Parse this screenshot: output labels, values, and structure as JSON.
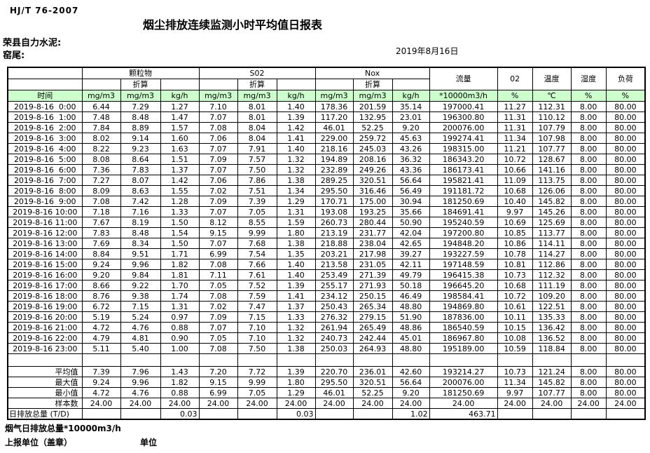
{
  "page": {
    "standard": "HJ/T  76-2007",
    "title": "烟尘排放连续监测小时平均值日报表",
    "company": "荣县自力水泥:",
    "site": "窑尾:",
    "date": "2019年8月16日"
  },
  "table": {
    "groups": {
      "pm": "颗粒物",
      "so2": "S02",
      "nox": "Nox",
      "flow": "流量",
      "o2": "02",
      "temp": "温度",
      "humidity": "湿度",
      "load": "负荷"
    },
    "zhesuan": "折算",
    "time_header": "时间",
    "units": {
      "mg": "mg/m3",
      "kgh": "kg/h",
      "flow": "*10000m3/h",
      "pct": "%",
      "temp": "℃"
    },
    "rows": [
      {
        "time": "2019-8-16  0:00",
        "values": [
          "6.44",
          "7.29",
          "1.27",
          "7.10",
          "8.01",
          "1.40",
          "178.36",
          "201.59",
          "35.14",
          "197000.41",
          "11.27",
          "112.31",
          "8.00",
          "80.00"
        ]
      },
      {
        "time": "2019-8-16  1:00",
        "values": [
          "7.48",
          "8.48",
          "1.47",
          "7.07",
          "8.01",
          "1.39",
          "117.20",
          "132.95",
          "23.01",
          "196300.80",
          "11.31",
          "110.12",
          "8.00",
          "80.00"
        ]
      },
      {
        "time": "2019-8-16  2:00",
        "values": [
          "7.84",
          "8.89",
          "1.57",
          "7.08",
          "8.04",
          "1.42",
          "46.01",
          "52.25",
          "9.20",
          "200076.00",
          "11.31",
          "107.79",
          "8.00",
          "80.00"
        ]
      },
      {
        "time": "2019-8-16  3:00",
        "values": [
          "8.02",
          "9.14",
          "1.60",
          "7.06",
          "8.04",
          "1.41",
          "229.00",
          "259.72",
          "45.63",
          "199274.41",
          "11.34",
          "107.98",
          "8.00",
          "80.00"
        ]
      },
      {
        "time": "2019-8-16  4:00",
        "values": [
          "8.22",
          "9.23",
          "1.63",
          "7.07",
          "7.91",
          "1.40",
          "218.16",
          "245.03",
          "43.26",
          "198315.00",
          "11.21",
          "107.77",
          "8.00",
          "80.00"
        ]
      },
      {
        "time": "2019-8-16  5:00",
        "values": [
          "8.08",
          "8.64",
          "1.51",
          "7.09",
          "7.57",
          "1.32",
          "194.89",
          "208.16",
          "36.32",
          "186343.20",
          "10.72",
          "128.67",
          "8.00",
          "80.00"
        ]
      },
      {
        "time": "2019-8-16  6:00",
        "values": [
          "7.36",
          "7.83",
          "1.37",
          "7.07",
          "7.50",
          "1.32",
          "232.89",
          "249.26",
          "43.36",
          "186173.41",
          "10.66",
          "141.16",
          "8.00",
          "80.00"
        ]
      },
      {
        "time": "2019-8-16  7:00",
        "values": [
          "7.27",
          "8.07",
          "1.42",
          "7.06",
          "7.86",
          "1.38",
          "289.25",
          "320.51",
          "56.64",
          "195821.41",
          "11.09",
          "113.75",
          "8.00",
          "80.00"
        ]
      },
      {
        "time": "2019-8-16  8:00",
        "values": [
          "8.09",
          "8.63",
          "1.55",
          "7.02",
          "7.51",
          "1.34",
          "295.50",
          "316.46",
          "56.49",
          "191181.72",
          "10.68",
          "126.06",
          "8.00",
          "80.00"
        ]
      },
      {
        "time": "2019-8-16  9:00",
        "values": [
          "7.08",
          "7.42",
          "1.28",
          "7.09",
          "7.39",
          "1.29",
          "170.71",
          "175.00",
          "30.94",
          "181250.69",
          "10.40",
          "145.82",
          "8.00",
          "80.00"
        ]
      },
      {
        "time": "2019-8-16 10:00",
        "values": [
          "7.18",
          "7.16",
          "1.33",
          "7.07",
          "7.05",
          "1.31",
          "193.08",
          "193.25",
          "35.66",
          "184691.41",
          "9.97",
          "145.26",
          "8.00",
          "80.00"
        ]
      },
      {
        "time": "2019-8-16 11:00",
        "values": [
          "7.67",
          "8.19",
          "1.50",
          "8.12",
          "8.55",
          "1.59",
          "260.73",
          "280.44",
          "50.90",
          "195240.59",
          "10.69",
          "125.69",
          "8.00",
          "80.00"
        ]
      },
      {
        "time": "2019-8-16 12:00",
        "values": [
          "7.83",
          "8.48",
          "1.54",
          "9.15",
          "9.99",
          "1.80",
          "213.19",
          "231.77",
          "42.04",
          "197200.80",
          "10.85",
          "113.77",
          "8.00",
          "80.00"
        ]
      },
      {
        "time": "2019-8-16 13:00",
        "values": [
          "7.69",
          "8.34",
          "1.50",
          "7.07",
          "7.68",
          "1.38",
          "218.88",
          "238.04",
          "42.65",
          "194848.20",
          "10.86",
          "114.11",
          "8.00",
          "80.00"
        ]
      },
      {
        "time": "2019-8-16 14:00",
        "values": [
          "8.84",
          "9.51",
          "1.71",
          "6.99",
          "7.54",
          "1.35",
          "203.21",
          "217.98",
          "39.27",
          "193227.59",
          "10.78",
          "114.27",
          "8.00",
          "80.00"
        ]
      },
      {
        "time": "2019-8-16 15:00",
        "values": [
          "9.24",
          "9.96",
          "1.82",
          "7.08",
          "7.66",
          "1.40",
          "213.58",
          "231.05",
          "42.11",
          "197148.59",
          "10.81",
          "112.86",
          "8.00",
          "80.00"
        ]
      },
      {
        "time": "2019-8-16 16:00",
        "values": [
          "9.20",
          "9.84",
          "1.81",
          "7.11",
          "7.61",
          "1.40",
          "253.49",
          "271.39",
          "49.79",
          "196415.38",
          "10.73",
          "112.32",
          "8.00",
          "80.00"
        ]
      },
      {
        "time": "2019-8-16 17:00",
        "values": [
          "8.66",
          "9.22",
          "1.70",
          "7.05",
          "7.52",
          "1.39",
          "255.17",
          "271.93",
          "50.18",
          "196645.20",
          "10.68",
          "111.19",
          "8.00",
          "80.00"
        ]
      },
      {
        "time": "2019-8-16 18:00",
        "values": [
          "8.76",
          "9.38",
          "1.74",
          "7.08",
          "7.59",
          "1.41",
          "234.12",
          "250.15",
          "46.49",
          "198584.41",
          "10.72",
          "109.20",
          "8.00",
          "80.00"
        ]
      },
      {
        "time": "2019-8-16 19:00",
        "values": [
          "6.72",
          "7.15",
          "1.31",
          "7.02",
          "7.47",
          "1.37",
          "250.43",
          "265.34",
          "48.80",
          "194869.80",
          "10.61",
          "122.51",
          "8.00",
          "80.00"
        ]
      },
      {
        "time": "2019-8-16 20:00",
        "values": [
          "5.19",
          "5.24",
          "0.97",
          "7.09",
          "7.15",
          "1.33",
          "276.32",
          "279.15",
          "51.90",
          "187836.00",
          "10.11",
          "135.33",
          "8.00",
          "80.00"
        ]
      },
      {
        "time": "2019-8-16 21:00",
        "values": [
          "4.72",
          "4.76",
          "0.88",
          "7.07",
          "7.10",
          "1.32",
          "261.94",
          "265.49",
          "48.86",
          "186540.59",
          "10.15",
          "136.42",
          "8.00",
          "80.00"
        ]
      },
      {
        "time": "2019-8-16 22:00",
        "values": [
          "4.79",
          "4.81",
          "0.90",
          "7.05",
          "7.10",
          "1.32",
          "240.73",
          "242.44",
          "45.01",
          "186967.80",
          "10.08",
          "136.52",
          "8.00",
          "80.00"
        ]
      },
      {
        "time": "2019-8-16 23:00",
        "values": [
          "5.11",
          "5.40",
          "1.00",
          "7.08",
          "7.50",
          "1.38",
          "250.03",
          "264.93",
          "48.80",
          "195189.00",
          "10.59",
          "118.84",
          "8.00",
          "80.00"
        ]
      }
    ],
    "summary": [
      {
        "label": "平均值",
        "values": [
          "7.39",
          "7.96",
          "1.43",
          "7.20",
          "7.72",
          "1.39",
          "220.70",
          "236.01",
          "42.60",
          "193214.27",
          "10.73",
          "121.24",
          "8.00",
          "80.00"
        ]
      },
      {
        "label": "最大值",
        "values": [
          "9.24",
          "9.96",
          "1.82",
          "9.15",
          "9.99",
          "1.80",
          "295.50",
          "320.51",
          "56.64",
          "200076.00",
          "11.34",
          "145.82",
          "8.00",
          "80.00"
        ]
      },
      {
        "label": "最小值",
        "values": [
          "4.72",
          "4.76",
          "0.88",
          "6.99",
          "7.05",
          "1.29",
          "46.01",
          "52.25",
          "9.20",
          "181250.69",
          "9.97",
          "107.77",
          "8.00",
          "80.00"
        ]
      },
      {
        "label": "样本数",
        "values": [
          "24.00",
          "24.00",
          "24.00",
          "24.00",
          "24.00",
          "24.00",
          "24.00",
          "24.00",
          "24.00",
          "24.00",
          "24.00",
          "24.00",
          "24.00",
          "24.00"
        ]
      }
    ],
    "total_row": {
      "label": "日排放总量 (T/D)",
      "values": [
        "",
        "",
        "0.03",
        "",
        "",
        "0.03",
        "",
        "",
        "1.02",
        "463.71",
        "",
        "",
        "",
        ""
      ]
    }
  },
  "footer": {
    "note": "烟气日排放总量*10000m3/h",
    "report_unit": "上报单位（盖章）",
    "unit": "单位"
  }
}
